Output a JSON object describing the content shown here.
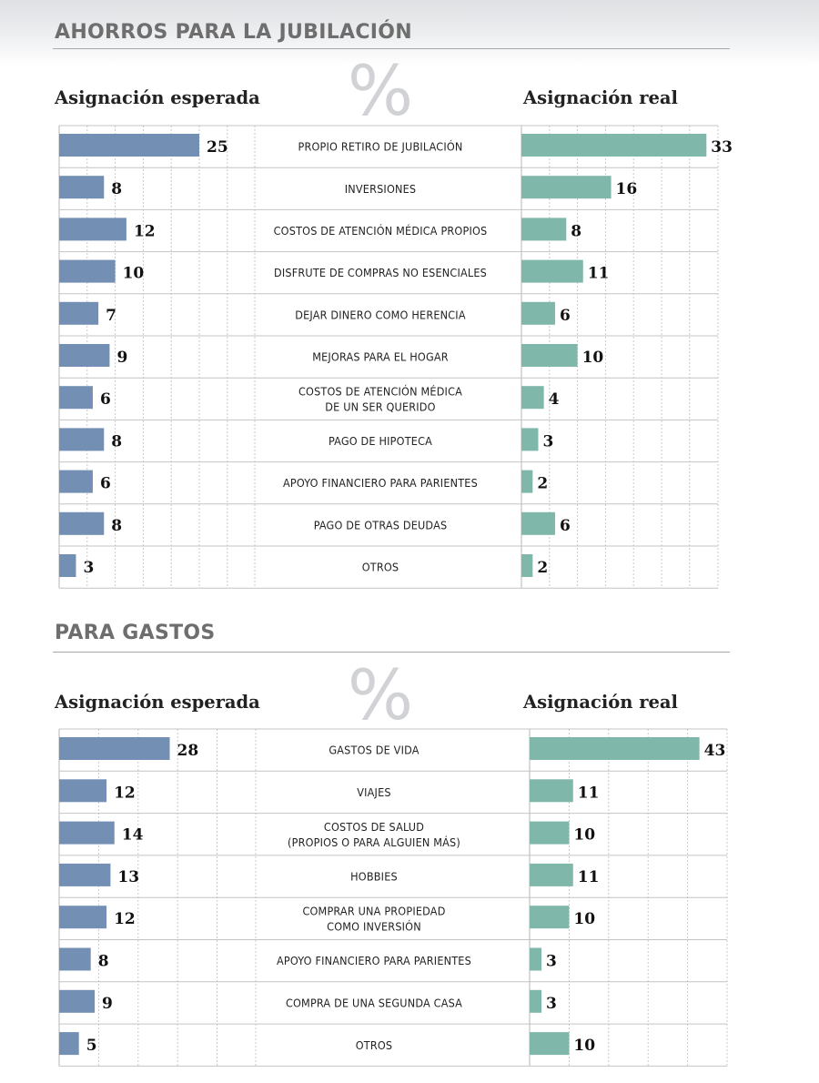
{
  "chart_data": [
    {
      "type": "bar",
      "title": "AHORROS PARA LA JUBILACIÓN",
      "symbol": "%",
      "left_label": "Asignación esperada",
      "right_label": "Asignación real",
      "categories": [
        [
          "PROPIO RETIRO DE JUBILACIÓN"
        ],
        [
          "INVERSIONES"
        ],
        [
          "COSTOS DE ATENCIÓN MÉDICA PROPIOS"
        ],
        [
          "DISFRUTE DE COMPRAS NO ESENCIALES"
        ],
        [
          "DEJAR DINERO COMO HERENCIA"
        ],
        [
          "MEJORAS PARA EL HOGAR"
        ],
        [
          "COSTOS DE ATENCIÓN MÉDICA",
          "DE UN SER QUERIDO"
        ],
        [
          "PAGO DE HIPOTECA"
        ],
        [
          "APOYO FINANCIERO PARA PARIENTES"
        ],
        [
          "PAGO DE OTRAS DEUDAS"
        ],
        [
          "OTROS"
        ]
      ],
      "series": [
        {
          "values": [
            25,
            8,
            12,
            10,
            7,
            9,
            6,
            8,
            6,
            8,
            3
          ]
        },
        {
          "values": [
            33,
            16,
            8,
            11,
            6,
            10,
            4,
            3,
            2,
            6,
            2
          ]
        }
      ],
      "grid": true
    },
    {
      "type": "bar",
      "title": "PARA GASTOS",
      "symbol": "%",
      "left_label": "Asignación esperada",
      "right_label": "Asignación real",
      "categories": [
        [
          "GASTOS DE VIDA"
        ],
        [
          "VIAJES"
        ],
        [
          "COSTOS DE SALUD",
          "(PROPIOS O PARA ALGUIEN MÁS)"
        ],
        [
          "HOBBIES"
        ],
        [
          "COMPRAR UNA PROPIEDAD",
          "COMO INVERSIÓN"
        ],
        [
          "APOYO FINANCIERO PARA PARIENTES"
        ],
        [
          "COMPRA DE UNA SEGUNDA CASA"
        ],
        [
          "OTROS"
        ]
      ],
      "series": [
        {
          "values": [
            28,
            12,
            14,
            13,
            12,
            8,
            9,
            5
          ]
        },
        {
          "values": [
            43,
            11,
            10,
            11,
            10,
            3,
            3,
            10
          ]
        }
      ],
      "grid": true
    }
  ],
  "colors": {
    "expected": "#7390b4",
    "actual": "#7fb7aa",
    "title": "#6e6e6e",
    "grid": "#c9c9c9"
  }
}
